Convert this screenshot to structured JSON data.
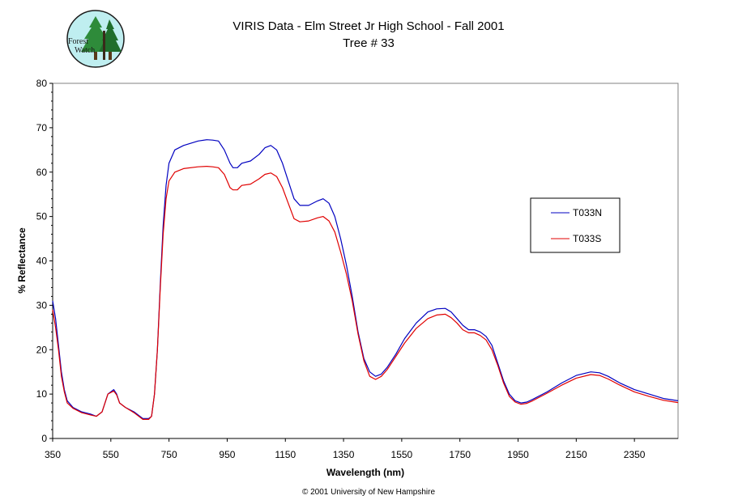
{
  "logo": {
    "line1": "Forest",
    "line2": "Watch"
  },
  "copyright": "© 2001 University of New Hampshire",
  "chart_data": {
    "type": "line",
    "title": "VIRIS Data - Elm Street Jr High School - Fall 2001",
    "subtitle": "Tree # 33",
    "xlabel": "Wavelength (nm)",
    "ylabel": "% Reflectance",
    "xlim": [
      350,
      2500
    ],
    "ylim": [
      0,
      80
    ],
    "xticks": [
      350,
      550,
      750,
      950,
      1150,
      1350,
      1550,
      1750,
      1950,
      2150,
      2350
    ],
    "yticks": [
      0,
      10,
      20,
      30,
      40,
      50,
      60,
      70,
      80
    ],
    "grid": false,
    "legend_position": "right",
    "series": [
      {
        "name": "T033N",
        "color": "#0000c0",
        "points": [
          [
            350,
            31
          ],
          [
            360,
            27
          ],
          [
            370,
            21
          ],
          [
            380,
            15
          ],
          [
            390,
            11
          ],
          [
            400,
            8.5
          ],
          [
            420,
            7
          ],
          [
            450,
            6
          ],
          [
            480,
            5.5
          ],
          [
            500,
            5
          ],
          [
            520,
            6
          ],
          [
            540,
            10
          ],
          [
            560,
            11
          ],
          [
            570,
            10
          ],
          [
            580,
            8
          ],
          [
            600,
            7
          ],
          [
            630,
            6
          ],
          [
            660,
            4.5
          ],
          [
            680,
            4.5
          ],
          [
            690,
            5
          ],
          [
            700,
            10
          ],
          [
            710,
            20
          ],
          [
            720,
            35
          ],
          [
            730,
            48
          ],
          [
            740,
            57
          ],
          [
            750,
            62
          ],
          [
            770,
            65
          ],
          [
            800,
            66
          ],
          [
            850,
            67
          ],
          [
            880,
            67.3
          ],
          [
            900,
            67.2
          ],
          [
            920,
            67
          ],
          [
            940,
            65
          ],
          [
            960,
            62
          ],
          [
            970,
            61
          ],
          [
            985,
            61
          ],
          [
            1000,
            62
          ],
          [
            1030,
            62.5
          ],
          [
            1060,
            64
          ],
          [
            1080,
            65.5
          ],
          [
            1100,
            66
          ],
          [
            1120,
            65
          ],
          [
            1140,
            62
          ],
          [
            1160,
            58
          ],
          [
            1180,
            54
          ],
          [
            1200,
            52.5
          ],
          [
            1230,
            52.5
          ],
          [
            1260,
            53.5
          ],
          [
            1280,
            54
          ],
          [
            1300,
            53
          ],
          [
            1320,
            50
          ],
          [
            1340,
            45
          ],
          [
            1360,
            39
          ],
          [
            1380,
            32
          ],
          [
            1400,
            24
          ],
          [
            1420,
            18
          ],
          [
            1440,
            15
          ],
          [
            1460,
            14
          ],
          [
            1480,
            14.5
          ],
          [
            1500,
            16
          ],
          [
            1530,
            19
          ],
          [
            1560,
            22.5
          ],
          [
            1600,
            26
          ],
          [
            1640,
            28.5
          ],
          [
            1670,
            29.2
          ],
          [
            1700,
            29.3
          ],
          [
            1720,
            28.5
          ],
          [
            1740,
            27
          ],
          [
            1760,
            25.5
          ],
          [
            1780,
            24.5
          ],
          [
            1800,
            24.5
          ],
          [
            1820,
            24
          ],
          [
            1840,
            23
          ],
          [
            1860,
            21
          ],
          [
            1880,
            17
          ],
          [
            1900,
            13
          ],
          [
            1920,
            10
          ],
          [
            1940,
            8.5
          ],
          [
            1960,
            8
          ],
          [
            1980,
            8.2
          ],
          [
            2000,
            8.8
          ],
          [
            2050,
            10.5
          ],
          [
            2100,
            12.5
          ],
          [
            2150,
            14.2
          ],
          [
            2200,
            15
          ],
          [
            2230,
            14.8
          ],
          [
            2260,
            14
          ],
          [
            2300,
            12.5
          ],
          [
            2350,
            11
          ],
          [
            2400,
            10
          ],
          [
            2450,
            9
          ],
          [
            2500,
            8.5
          ]
        ]
      },
      {
        "name": "T033S",
        "color": "#e00000",
        "points": [
          [
            350,
            29
          ],
          [
            360,
            25
          ],
          [
            370,
            20
          ],
          [
            380,
            14
          ],
          [
            390,
            10.5
          ],
          [
            400,
            8
          ],
          [
            420,
            6.8
          ],
          [
            450,
            5.8
          ],
          [
            480,
            5.3
          ],
          [
            500,
            5
          ],
          [
            520,
            6
          ],
          [
            540,
            10
          ],
          [
            560,
            10.7
          ],
          [
            570,
            9.8
          ],
          [
            580,
            8
          ],
          [
            600,
            7
          ],
          [
            630,
            5.8
          ],
          [
            660,
            4.3
          ],
          [
            680,
            4.3
          ],
          [
            690,
            5
          ],
          [
            700,
            10
          ],
          [
            710,
            20
          ],
          [
            720,
            34
          ],
          [
            730,
            46
          ],
          [
            740,
            54
          ],
          [
            750,
            58
          ],
          [
            770,
            60
          ],
          [
            800,
            60.8
          ],
          [
            850,
            61.2
          ],
          [
            880,
            61.3
          ],
          [
            900,
            61.2
          ],
          [
            920,
            61
          ],
          [
            940,
            59.5
          ],
          [
            960,
            56.5
          ],
          [
            970,
            56
          ],
          [
            985,
            56
          ],
          [
            1000,
            57
          ],
          [
            1030,
            57.3
          ],
          [
            1060,
            58.5
          ],
          [
            1080,
            59.5
          ],
          [
            1100,
            59.8
          ],
          [
            1120,
            59
          ],
          [
            1140,
            56.5
          ],
          [
            1160,
            53
          ],
          [
            1180,
            49.5
          ],
          [
            1200,
            48.8
          ],
          [
            1230,
            49
          ],
          [
            1260,
            49.7
          ],
          [
            1280,
            50
          ],
          [
            1300,
            49
          ],
          [
            1320,
            46.5
          ],
          [
            1340,
            42
          ],
          [
            1360,
            37
          ],
          [
            1380,
            31
          ],
          [
            1400,
            23.5
          ],
          [
            1420,
            17.5
          ],
          [
            1440,
            14
          ],
          [
            1460,
            13.3
          ],
          [
            1480,
            14
          ],
          [
            1500,
            15.5
          ],
          [
            1530,
            18.5
          ],
          [
            1560,
            21.5
          ],
          [
            1600,
            24.8
          ],
          [
            1640,
            27
          ],
          [
            1670,
            27.8
          ],
          [
            1700,
            28
          ],
          [
            1720,
            27.2
          ],
          [
            1740,
            26
          ],
          [
            1760,
            24.5
          ],
          [
            1780,
            23.8
          ],
          [
            1800,
            23.8
          ],
          [
            1820,
            23.2
          ],
          [
            1840,
            22.2
          ],
          [
            1860,
            20
          ],
          [
            1880,
            16.5
          ],
          [
            1900,
            12.5
          ],
          [
            1920,
            9.5
          ],
          [
            1940,
            8.2
          ],
          [
            1960,
            7.7
          ],
          [
            1980,
            7.9
          ],
          [
            2000,
            8.5
          ],
          [
            2050,
            10.2
          ],
          [
            2100,
            12
          ],
          [
            2150,
            13.6
          ],
          [
            2200,
            14.4
          ],
          [
            2230,
            14.2
          ],
          [
            2260,
            13.4
          ],
          [
            2300,
            12
          ],
          [
            2350,
            10.5
          ],
          [
            2400,
            9.5
          ],
          [
            2450,
            8.6
          ],
          [
            2500,
            8.1
          ]
        ]
      }
    ]
  }
}
